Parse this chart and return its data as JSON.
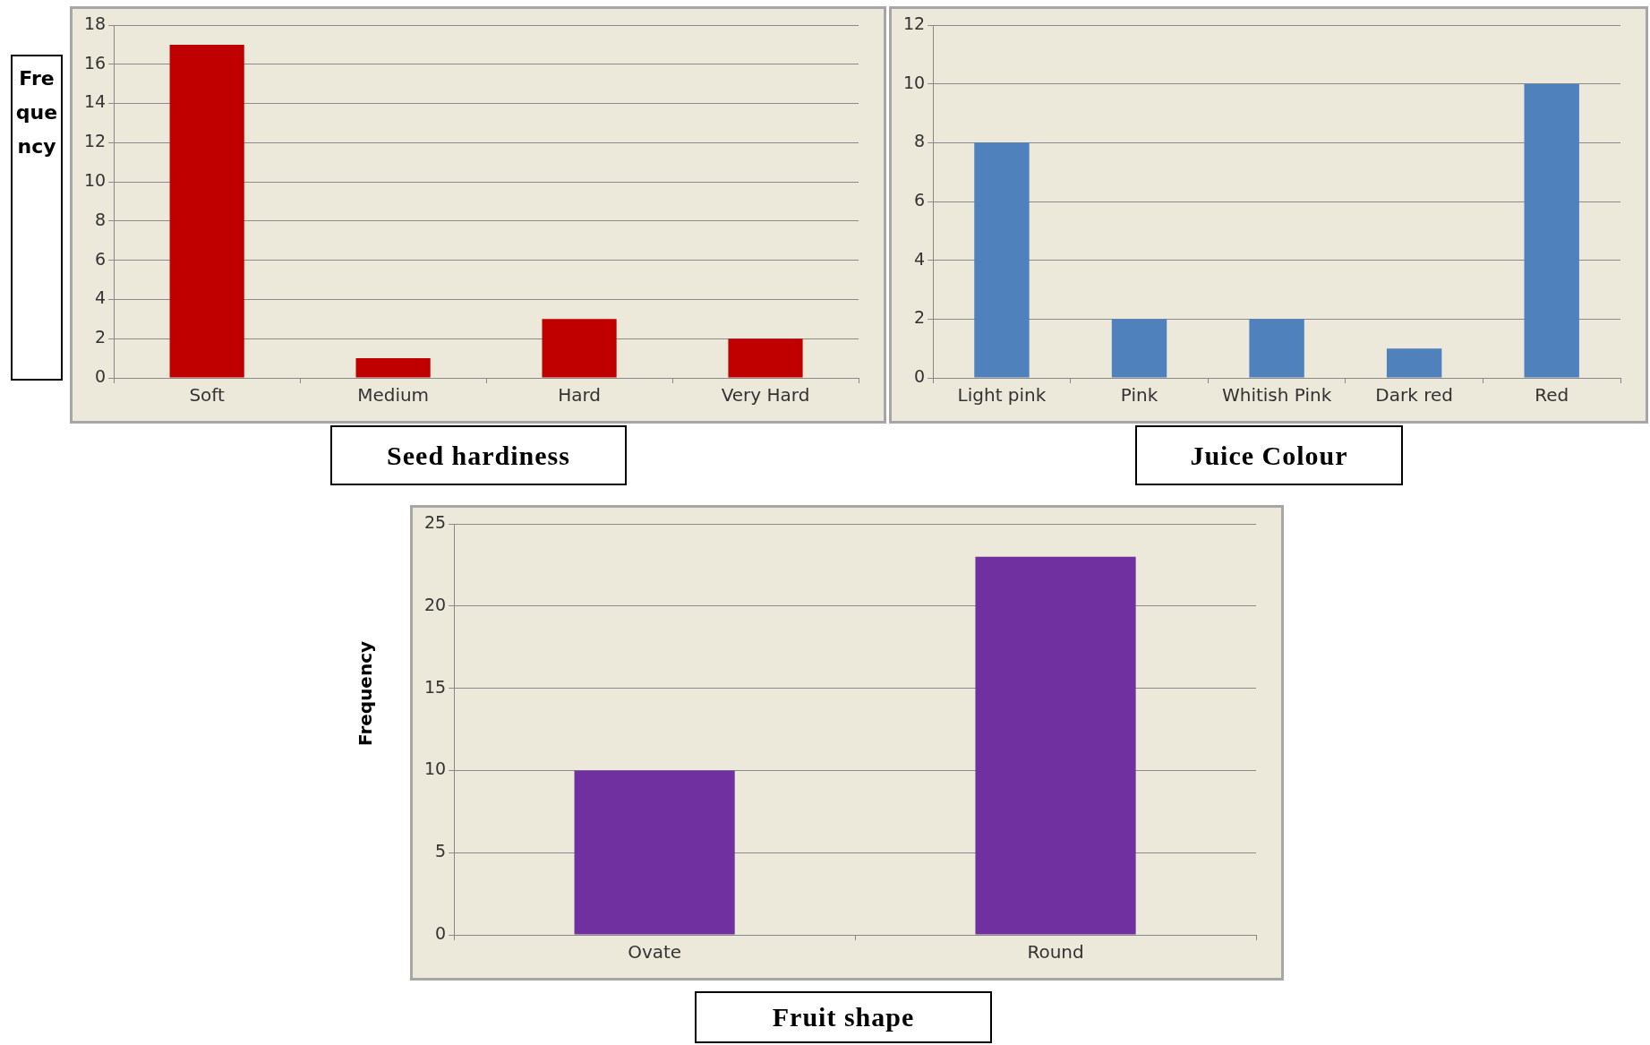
{
  "chart_data": [
    {
      "type": "bar",
      "title": "Seed hardiness",
      "ylabel": "Frequency",
      "categories": [
        "Soft",
        "Medium",
        "Hard",
        "Very Hard"
      ],
      "values": [
        17,
        1,
        3,
        2
      ],
      "color": "#c00000",
      "ylim": [
        0,
        18
      ],
      "yticks": [
        0,
        2,
        4,
        6,
        8,
        10,
        12,
        14,
        16,
        18
      ],
      "grid": "y"
    },
    {
      "type": "bar",
      "title": "Juice Colour",
      "categories": [
        "Light pink",
        "Pink",
        "Whitish Pink",
        "Dark red",
        "Red"
      ],
      "values": [
        8,
        2,
        2,
        1,
        10
      ],
      "color": "#4f81bd",
      "ylim": [
        0,
        12
      ],
      "yticks": [
        0,
        2,
        4,
        6,
        8,
        10,
        12
      ],
      "grid": "y"
    },
    {
      "type": "bar",
      "title": "Fruit shape",
      "ylabel": "Frequency",
      "categories": [
        "Ovate",
        "Round"
      ],
      "values": [
        10,
        23
      ],
      "color": "#7030a0",
      "ylim": [
        0,
        25
      ],
      "yticks": [
        0,
        5,
        10,
        15,
        20,
        25
      ],
      "grid": "y"
    }
  ]
}
